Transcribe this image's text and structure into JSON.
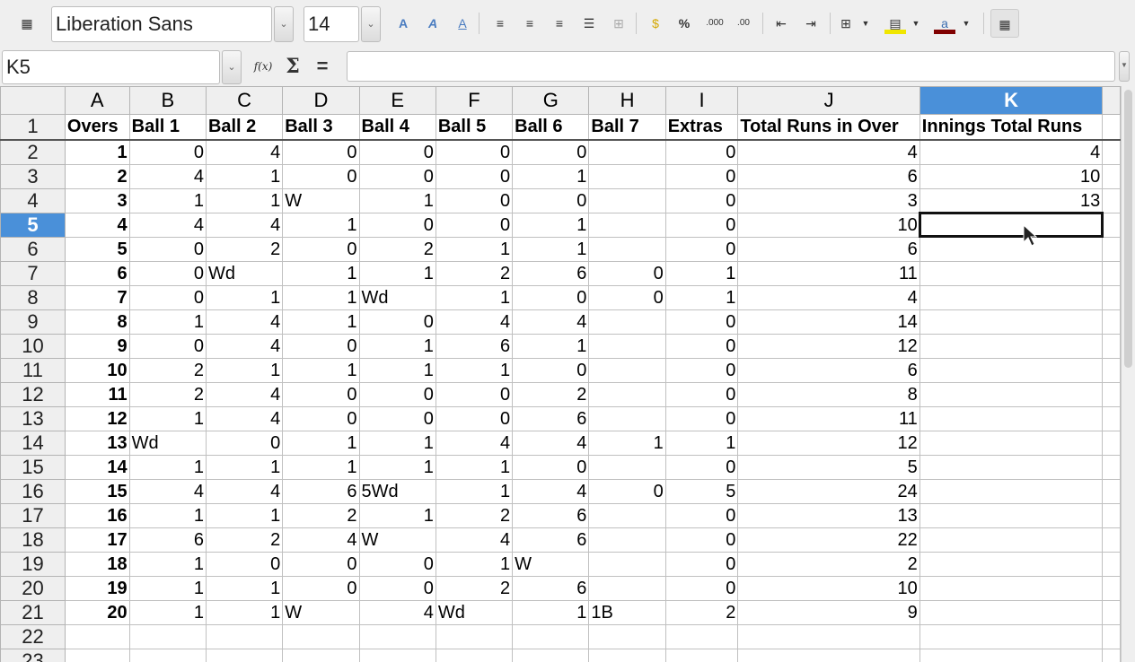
{
  "toolbar": {
    "font_name": "Liberation Sans",
    "font_size": "14"
  },
  "formula_bar": {
    "name_box": "K5",
    "function_wizard": "f(x)",
    "sum": "Σ",
    "equals": "=",
    "formula": ""
  },
  "columns": [
    "A",
    "B",
    "C",
    "D",
    "E",
    "F",
    "G",
    "H",
    "I",
    "J",
    "K"
  ],
  "selected_cell": {
    "column": "K",
    "row": "5"
  },
  "highlight_color": "#4a90d9",
  "rows": [
    [
      "Overs",
      "Ball 1",
      "Ball 2",
      "Ball 3",
      "Ball 4",
      "Ball 5",
      "Ball 6",
      "Ball 7",
      "Extras",
      "Total Runs in Over",
      "Innings Total Runs"
    ],
    [
      "1",
      "0",
      "4",
      "0",
      "0",
      "0",
      "0",
      "",
      "0",
      "4",
      "4"
    ],
    [
      "2",
      "4",
      "1",
      "0",
      "0",
      "0",
      "1",
      "",
      "0",
      "6",
      "10"
    ],
    [
      "3",
      "1",
      "1",
      "W",
      "1",
      "0",
      "0",
      "",
      "0",
      "3",
      "13"
    ],
    [
      "4",
      "4",
      "4",
      "1",
      "0",
      "0",
      "1",
      "",
      "0",
      "10",
      ""
    ],
    [
      "5",
      "0",
      "2",
      "0",
      "2",
      "1",
      "1",
      "",
      "0",
      "6",
      ""
    ],
    [
      "6",
      "0",
      "Wd",
      "1",
      "1",
      "2",
      "6",
      "0",
      "1",
      "11",
      ""
    ],
    [
      "7",
      "0",
      "1",
      "1",
      "Wd",
      "1",
      "0",
      "0",
      "1",
      "4",
      ""
    ],
    [
      "8",
      "1",
      "4",
      "1",
      "0",
      "4",
      "4",
      "",
      "0",
      "14",
      ""
    ],
    [
      "9",
      "0",
      "4",
      "0",
      "1",
      "6",
      "1",
      "",
      "0",
      "12",
      ""
    ],
    [
      "10",
      "2",
      "1",
      "1",
      "1",
      "1",
      "0",
      "",
      "0",
      "6",
      ""
    ],
    [
      "11",
      "2",
      "4",
      "0",
      "0",
      "0",
      "2",
      "",
      "0",
      "8",
      ""
    ],
    [
      "12",
      "1",
      "4",
      "0",
      "0",
      "0",
      "6",
      "",
      "0",
      "11",
      ""
    ],
    [
      "13",
      "Wd",
      "0",
      "1",
      "1",
      "4",
      "4",
      "1",
      "1",
      "12",
      ""
    ],
    [
      "14",
      "1",
      "1",
      "1",
      "1",
      "1",
      "0",
      "",
      "0",
      "5",
      ""
    ],
    [
      "15",
      "4",
      "4",
      "6",
      "5Wd",
      "1",
      "4",
      "0",
      "5",
      "24",
      ""
    ],
    [
      "16",
      "1",
      "1",
      "2",
      "1",
      "2",
      "6",
      "",
      "0",
      "13",
      ""
    ],
    [
      "17",
      "6",
      "2",
      "4",
      "W",
      "4",
      "6",
      "",
      "0",
      "22",
      ""
    ],
    [
      "18",
      "1",
      "0",
      "0",
      "0",
      "1",
      "W",
      "",
      "0",
      "2",
      ""
    ],
    [
      "19",
      "1",
      "1",
      "0",
      "0",
      "2",
      "6",
      "",
      "0",
      "10",
      ""
    ],
    [
      "20",
      "1",
      "1",
      "W",
      "4",
      "Wd",
      "1",
      "1B",
      "2",
      "9",
      ""
    ],
    [
      "",
      "",
      "",
      "",
      "",
      "",
      "",
      "",
      "",
      "",
      ""
    ],
    [
      "",
      "",
      "",
      "",
      "",
      "",
      "",
      "",
      "",
      "",
      ""
    ]
  ]
}
